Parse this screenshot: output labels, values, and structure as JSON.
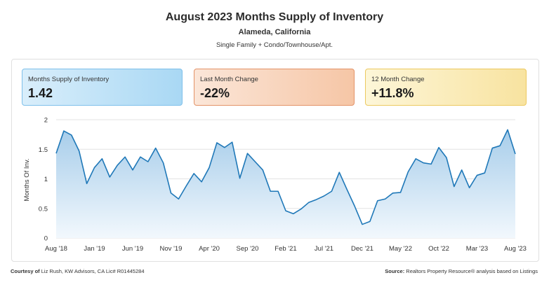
{
  "header": {
    "title": "August 2023 Months Supply of Inventory",
    "subtitle": "Alameda, California",
    "property_types": "Single Family + Condo/Townhouse/Apt."
  },
  "cards": [
    {
      "label": "Months Supply of Inventory",
      "value": "1.42"
    },
    {
      "label": "Last Month Change",
      "value": "-22%"
    },
    {
      "label": "12 Month Change",
      "value": "+11.8%"
    }
  ],
  "footer": {
    "left_bold": "Courtesy of",
    "left_text": " Liz Rush, KW Advisors, CA Lic# R01445284",
    "right_bold": "Source:",
    "right_text": " Realtors Property Resource® analysis based on Listings"
  },
  "chart_data": {
    "type": "area",
    "ylabel": "Months Of Inv.",
    "xlabel": "",
    "ylim": [
      0,
      2
    ],
    "yticks": [
      "0",
      "0.5",
      "1",
      "1.5",
      "2"
    ],
    "xtick_labels": [
      "Aug '18",
      "Jan '19",
      "Jun '19",
      "Nov '19",
      "Apr '20",
      "Sep '20",
      "Feb '21",
      "Jul '21",
      "Dec '21",
      "May '22",
      "Oct '22",
      "Mar '23",
      "Aug '23"
    ],
    "xtick_index": [
      0,
      5,
      10,
      15,
      20,
      25,
      30,
      35,
      40,
      45,
      50,
      55,
      60
    ],
    "colors": {
      "line": "#1f78b8",
      "fill_top": "#a7cdea",
      "fill_bottom": "#f2f8fd"
    },
    "series": [
      {
        "values": [
          1.43,
          1.81,
          1.74,
          1.47,
          0.92,
          1.19,
          1.34,
          1.03,
          1.23,
          1.37,
          1.15,
          1.37,
          1.29,
          1.52,
          1.27,
          0.76,
          0.66,
          0.88,
          1.09,
          0.95,
          1.19,
          1.61,
          1.53,
          1.62,
          1.01,
          1.43,
          1.29,
          1.15,
          0.79,
          0.79,
          0.46,
          0.41,
          0.49,
          0.6,
          0.65,
          0.71,
          0.79,
          1.11,
          0.82,
          0.54,
          0.23,
          0.28,
          0.63,
          0.66,
          0.76,
          0.77,
          1.12,
          1.34,
          1.27,
          1.25,
          1.53,
          1.36,
          0.87,
          1.15,
          0.85,
          1.06,
          1.1,
          1.52,
          1.56,
          1.83,
          1.42
        ]
      }
    ]
  }
}
